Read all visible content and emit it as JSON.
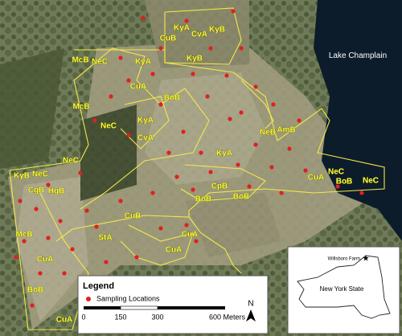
{
  "map": {
    "water_label": "Lake Champlain",
    "soil_labels": [
      "CuB",
      "KyA",
      "CvA",
      "KyB",
      "KyB",
      "McB",
      "NeC",
      "KyA",
      "CuA",
      "BoB",
      "McB",
      "KyA",
      "CvA",
      "NeC",
      "NeB",
      "AmB",
      "KyA",
      "NeC",
      "NeC",
      "KyB",
      "HgB",
      "CgB",
      "CpB",
      "BoB",
      "BoB",
      "CuA",
      "NeC",
      "BoB",
      "NeC",
      "CuB",
      "StA",
      "CuA",
      "CuA",
      "McB",
      "CuA",
      "BoB",
      "CuA"
    ],
    "legend": {
      "title": "Legend",
      "items": [
        "Sampling Locations"
      ]
    },
    "scale_bar": {
      "ticks": [
        "0",
        "150",
        "300",
        "600 Meters"
      ]
    },
    "north": "N",
    "inset": {
      "site": "Willsboro Farm",
      "state": "New York State"
    }
  }
}
